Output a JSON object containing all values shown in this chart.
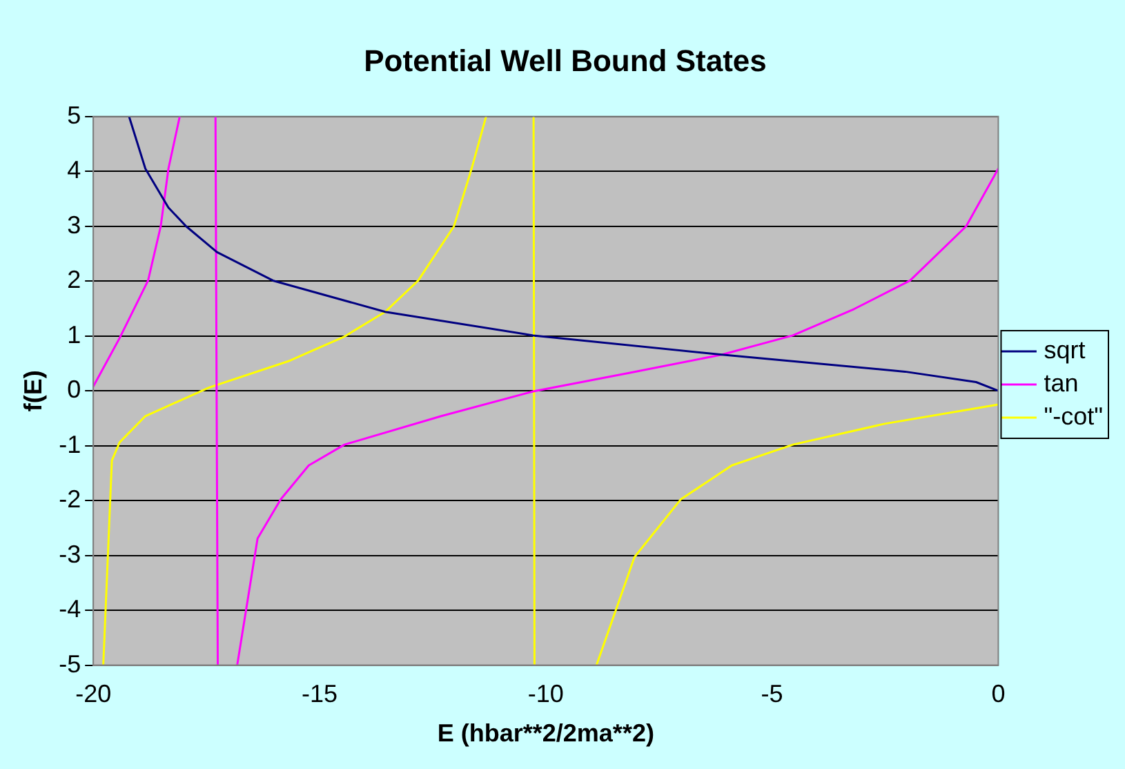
{
  "chart_data": {
    "type": "line",
    "title": "Potential Well Bound States",
    "xlabel": "E (hbar**2/2ma**2)",
    "ylabel": "f(E)",
    "xlim": [
      -20,
      0
    ],
    "xticks": [
      -20,
      -15,
      -10,
      -5,
      0
    ],
    "ylim": [
      -5,
      5
    ],
    "yticks": [
      -5,
      -4,
      -3,
      -2,
      -1,
      0,
      1,
      2,
      3,
      4,
      5
    ],
    "grid": "y",
    "legend": "right",
    "marker": "none",
    "line_style": "solid",
    "series": [
      {
        "name": "sqrt",
        "color": "#000080",
        "x": [
          -19.21,
          -18.85,
          -18.34,
          -17.95,
          -17.27,
          -16.03,
          -13.55,
          -10.28,
          -6.11,
          -2.06,
          -0.49,
          0
        ],
        "values": [
          5,
          4.05,
          3.34,
          3.0,
          2.53,
          2.01,
          1.44,
          1.01,
          0.66,
          0.35,
          0.16,
          0
        ]
      },
      {
        "name": "tan",
        "color": "#ff00ff",
        "x": [
          -20,
          -19.42,
          -18.79,
          -18.51,
          -18.34,
          -18.09,
          -17.7,
          -17.3,
          -17.25,
          -17.0,
          -16.82,
          -16.37,
          -15.86,
          -15.24,
          -14.45,
          -12.31,
          -10.28,
          -8.14,
          -6.11,
          -4.54,
          -3.19,
          -1.95,
          -0.71,
          0
        ],
        "values": [
          0.08,
          0.96,
          2.01,
          3.0,
          4.05,
          5,
          null,
          5,
          -5,
          null,
          -5,
          -2.69,
          -1.98,
          -1.36,
          -0.98,
          -0.46,
          -0.01,
          0.33,
          0.66,
          1.01,
          1.49,
          2.01,
          3.0,
          4.05
        ]
      },
      {
        "name": "\"-cot\"",
        "color": "#ffff00",
        "x": [
          -19.78,
          -19.59,
          -19.42,
          -18.85,
          -17.44,
          -15.69,
          -14.45,
          -13.55,
          -12.82,
          -12.03,
          -11.64,
          -11.32,
          -10.8,
          -10.27,
          -10.25,
          -9.5,
          -8.88,
          -8.04,
          -7.02,
          -5.89,
          -4.54,
          -2.51,
          0
        ],
        "values": [
          -5,
          -1.27,
          -0.94,
          -0.46,
          0.06,
          0.54,
          0.99,
          1.44,
          2.01,
          3.0,
          4.05,
          5,
          null,
          5,
          -5,
          null,
          -5,
          -3.03,
          -1.98,
          -1.36,
          -0.98,
          -0.6,
          -0.25
        ]
      }
    ]
  }
}
